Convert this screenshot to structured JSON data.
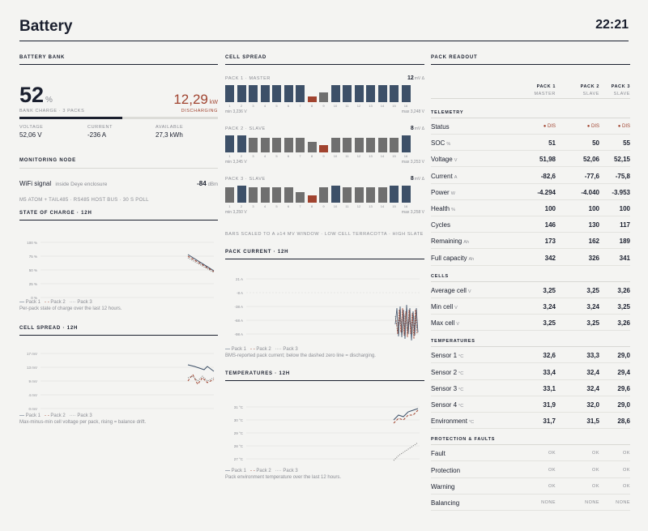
{
  "header": {
    "title": "Battery",
    "time": "22:21"
  },
  "bank": {
    "section": "BATTERY BANK",
    "charge_value": "52",
    "charge_unit": "%",
    "charge_label": "BANK CHARGE · 3 PACKS",
    "charge_fraction": 0.52,
    "power_value": "12,29",
    "power_unit": "kW",
    "power_state": "DISCHARGING",
    "stats": [
      {
        "label": "VOLTAGE",
        "value": "52,06 V"
      },
      {
        "label": "CURRENT",
        "value": "-236 A"
      },
      {
        "label": "AVAILABLE",
        "value": "27,3 kWh"
      }
    ]
  },
  "monitoring": {
    "section": "MONITORING NODE",
    "wifi_label": "WiFi signal",
    "wifi_location": "inside Deye enclosure",
    "wifi_value": "-84",
    "wifi_unit": "dBm",
    "node_desc": "M5 ATOM + TAIL485 · RS485 HOST BUS · 30 S POLL"
  },
  "soc_chart": {
    "title": "STATE OF CHARGE · 12H",
    "caption": "Per-pack state of charge over the last 12 hours.",
    "yticks": [
      "100 %",
      "75 %",
      "50 %",
      "25 %",
      "0 %"
    ],
    "legend": [
      "Pack 1",
      "Pack 2",
      "Pack 3"
    ]
  },
  "spread_chart": {
    "title": "CELL SPREAD · 12H",
    "caption": "Max-minus-min cell voltage per pack, rising = balance drift.",
    "yticks": [
      "17 mV",
      "13 mV",
      "9 mV",
      "4 mV",
      "0 mV"
    ],
    "legend": [
      "Pack 1",
      "Pack 2",
      "Pack 3"
    ]
  },
  "cell_spread": {
    "section": "CELL SPREAD",
    "packs": [
      {
        "label": "PACK 1 · MASTER",
        "delta": "12",
        "delta_unit": "mV Δ",
        "min": "min 3,236 V",
        "max": "max 3,248 V",
        "bars": [
          0.95,
          0.95,
          0.95,
          0.95,
          0.95,
          0.95,
          0.95,
          0.3,
          0.55,
          0.95,
          0.95,
          0.95,
          0.95,
          0.95,
          0.95,
          0.95
        ],
        "kinds": [
          "h",
          "h",
          "h",
          "h",
          "h",
          "h",
          "h",
          "l",
          "n",
          "h",
          "h",
          "h",
          "h",
          "h",
          "h",
          "h"
        ]
      },
      {
        "label": "PACK 2 · SLAVE",
        "delta": "8",
        "delta_unit": "mV Δ",
        "min": "min 3,245 V",
        "max": "max 3,253 V",
        "bars": [
          0.95,
          0.95,
          0.8,
          0.8,
          0.8,
          0.8,
          0.8,
          0.6,
          0.4,
          0.8,
          0.8,
          0.8,
          0.8,
          0.8,
          0.8,
          0.95
        ],
        "kinds": [
          "h",
          "h",
          "n",
          "n",
          "n",
          "n",
          "n",
          "n",
          "l",
          "n",
          "n",
          "n",
          "n",
          "n",
          "n",
          "h"
        ]
      },
      {
        "label": "PACK 3 · SLAVE",
        "delta": "8",
        "delta_unit": "mV Δ",
        "min": "min 3,250 V",
        "max": "max 3,258 V",
        "bars": [
          0.85,
          0.95,
          0.85,
          0.85,
          0.85,
          0.85,
          0.6,
          0.4,
          0.85,
          0.95,
          0.85,
          0.85,
          0.85,
          0.85,
          0.95,
          0.95
        ],
        "kinds": [
          "n",
          "h",
          "n",
          "n",
          "n",
          "n",
          "n",
          "l",
          "n",
          "h",
          "n",
          "n",
          "n",
          "n",
          "h",
          "h"
        ]
      }
    ],
    "cells": [
      "1",
      "2",
      "3",
      "4",
      "5",
      "6",
      "7",
      "8",
      "9",
      "10",
      "11",
      "12",
      "13",
      "14",
      "15",
      "16"
    ],
    "note": "BARS SCALED TO A ≥14 MV WINDOW · LOW CELL TERRACOTTA · HIGH SLATE"
  },
  "current_chart": {
    "title": "PACK CURRENT · 12H",
    "caption": "BMS-reported pack current; below the dashed zero line = discharging.",
    "yticks": [
      "21 A",
      "-8 A",
      "-38 A",
      "-68 A",
      "-98 A"
    ],
    "legend": [
      "Pack 1",
      "Pack 2",
      "Pack 3"
    ]
  },
  "temp_chart": {
    "title": "TEMPERATURES · 12H",
    "caption": "Pack environment temperature over the last 12 hours.",
    "yticks": [
      "31 °C",
      "30 °C",
      "29 °C",
      "28 °C",
      "27 °C"
    ],
    "legend": [
      "Pack 1",
      "Pack 2",
      "Pack 3"
    ]
  },
  "readout": {
    "section": "PACK READOUT",
    "packs": [
      {
        "name": "PACK 1",
        "role": "MASTER"
      },
      {
        "name": "PACK 2",
        "role": "SLAVE"
      },
      {
        "name": "PACK 3",
        "role": "SLAVE"
      }
    ],
    "groups": [
      {
        "title": "TELEMETRY",
        "rows": [
          {
            "label": "Status",
            "unit": "",
            "values": [
              "● DIS",
              "● DIS",
              "● DIS"
            ],
            "style": "dis"
          },
          {
            "label": "SOC",
            "unit": "%",
            "values": [
              "51",
              "50",
              "55"
            ]
          },
          {
            "label": "Voltage",
            "unit": "V",
            "values": [
              "51,98",
              "52,06",
              "52,15"
            ]
          },
          {
            "label": "Current",
            "unit": "A",
            "values": [
              "-82,6",
              "-77,6",
              "-75,8"
            ]
          },
          {
            "label": "Power",
            "unit": "W",
            "values": [
              "-4.294",
              "-4.040",
              "-3.953"
            ]
          },
          {
            "label": "Health",
            "unit": "%",
            "values": [
              "100",
              "100",
              "100"
            ]
          },
          {
            "label": "Cycles",
            "unit": "",
            "values": [
              "146",
              "130",
              "117"
            ]
          },
          {
            "label": "Remaining",
            "unit": "Ah",
            "values": [
              "173",
              "162",
              "189"
            ]
          },
          {
            "label": "Full capacity",
            "unit": "Ah",
            "values": [
              "342",
              "326",
              "341"
            ]
          }
        ]
      },
      {
        "title": "CELLS",
        "rows": [
          {
            "label": "Average cell",
            "unit": "V",
            "values": [
              "3,25",
              "3,25",
              "3,26"
            ]
          },
          {
            "label": "Min cell",
            "unit": "V",
            "values": [
              "3,24",
              "3,24",
              "3,25"
            ]
          },
          {
            "label": "Max cell",
            "unit": "V",
            "values": [
              "3,25",
              "3,25",
              "3,26"
            ]
          }
        ]
      },
      {
        "title": "TEMPERATURES",
        "rows": [
          {
            "label": "Sensor 1",
            "unit": "°C",
            "values": [
              "32,6",
              "33,3",
              "29,0"
            ]
          },
          {
            "label": "Sensor 2",
            "unit": "°C",
            "values": [
              "33,4",
              "32,4",
              "29,4"
            ]
          },
          {
            "label": "Sensor 3",
            "unit": "°C",
            "values": [
              "33,1",
              "32,4",
              "29,6"
            ]
          },
          {
            "label": "Sensor 4",
            "unit": "°C",
            "values": [
              "31,9",
              "32,0",
              "29,0"
            ]
          },
          {
            "label": "Environment",
            "unit": "°C",
            "values": [
              "31,7",
              "31,5",
              "28,6"
            ]
          }
        ]
      },
      {
        "title": "PROTECTION & FAULTS",
        "rows": [
          {
            "label": "Fault",
            "unit": "",
            "values": [
              "OK",
              "OK",
              "OK"
            ],
            "style": "ok"
          },
          {
            "label": "Protection",
            "unit": "",
            "values": [
              "OK",
              "OK",
              "OK"
            ],
            "style": "ok"
          },
          {
            "label": "Warning",
            "unit": "",
            "values": [
              "OK",
              "OK",
              "OK"
            ],
            "style": "ok"
          },
          {
            "label": "Balancing",
            "unit": "",
            "values": [
              "NONE",
              "NONE",
              "NONE"
            ],
            "style": "ok"
          }
        ]
      }
    ]
  },
  "colors": {
    "ink": "#1a1f2e",
    "slate": "#3d5068",
    "grey": "#6f6f6f",
    "terracotta": "#a0432f",
    "paper": "#f4f4f2"
  }
}
